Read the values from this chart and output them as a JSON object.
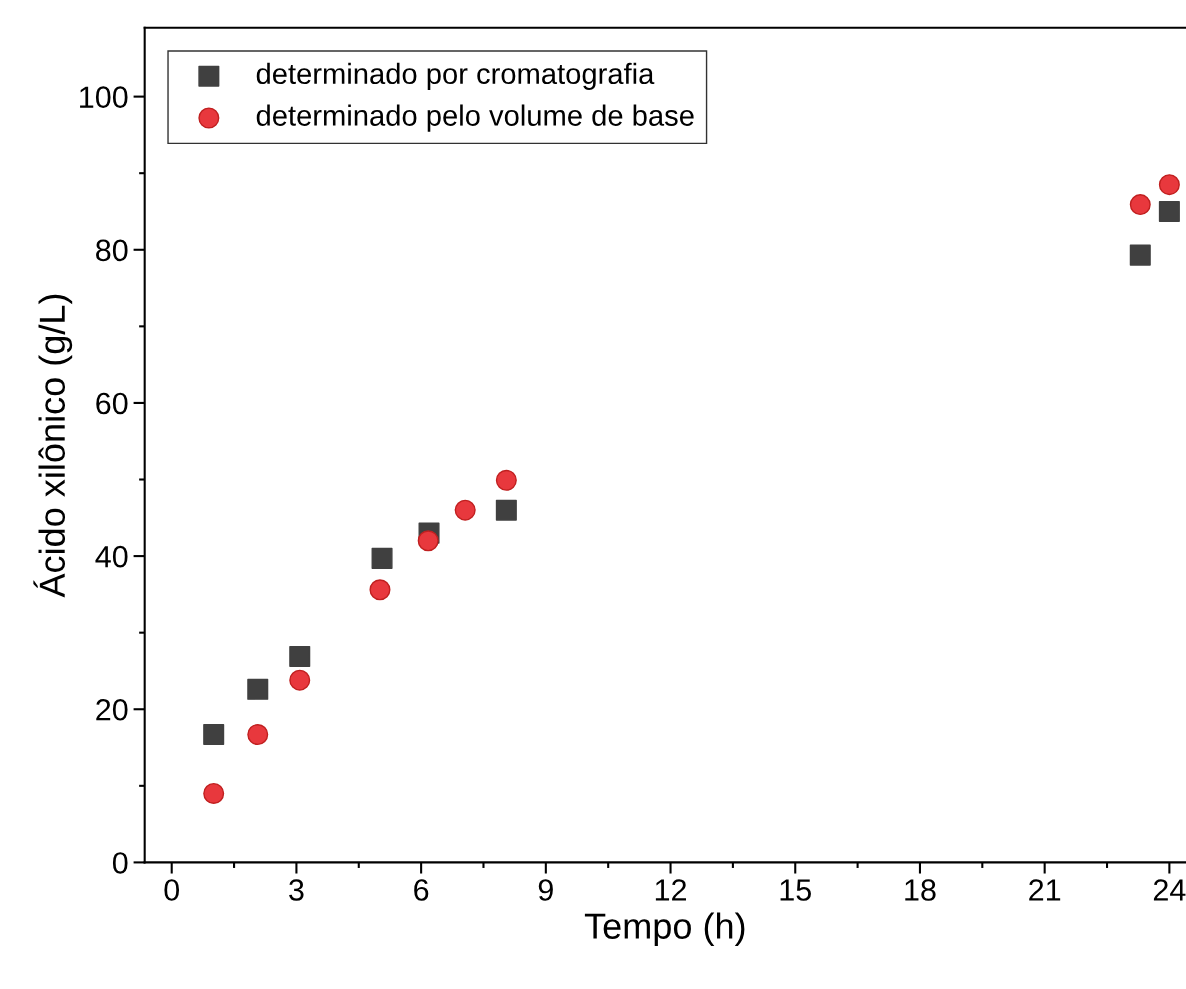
{
  "chart_data": {
    "type": "scatter",
    "xlabel": "Tempo (h)",
    "ylabel": "Ácido xilônico (g/L)",
    "xlim": [
      -0.65,
      24.4
    ],
    "ylim": [
      0,
      109
    ],
    "xticks": [
      0,
      3,
      6,
      9,
      12,
      15,
      18,
      21,
      24
    ],
    "yticks": [
      0,
      20,
      40,
      60,
      80,
      100
    ],
    "grid": false,
    "legend": "top left",
    "series": [
      {
        "name": "determinado por cromatografia",
        "color": "#404040",
        "marker": "square",
        "x": [
          1.01,
          2.07,
          3.08,
          5.06,
          6.19,
          8.05,
          23.3,
          24.0
        ],
        "values": [
          16.7,
          22.6,
          26.9,
          39.7,
          43.0,
          46.0,
          79.3,
          85.0
        ]
      },
      {
        "name": "determinado pelo volume de base",
        "color": "#e8383d",
        "marker": "circle",
        "x": [
          1.01,
          2.07,
          3.08,
          5.01,
          6.17,
          7.06,
          8.05,
          23.3,
          24.0
        ],
        "values": [
          9.0,
          16.7,
          23.8,
          35.6,
          42.0,
          46.0,
          49.9,
          85.9,
          88.5
        ]
      }
    ]
  }
}
